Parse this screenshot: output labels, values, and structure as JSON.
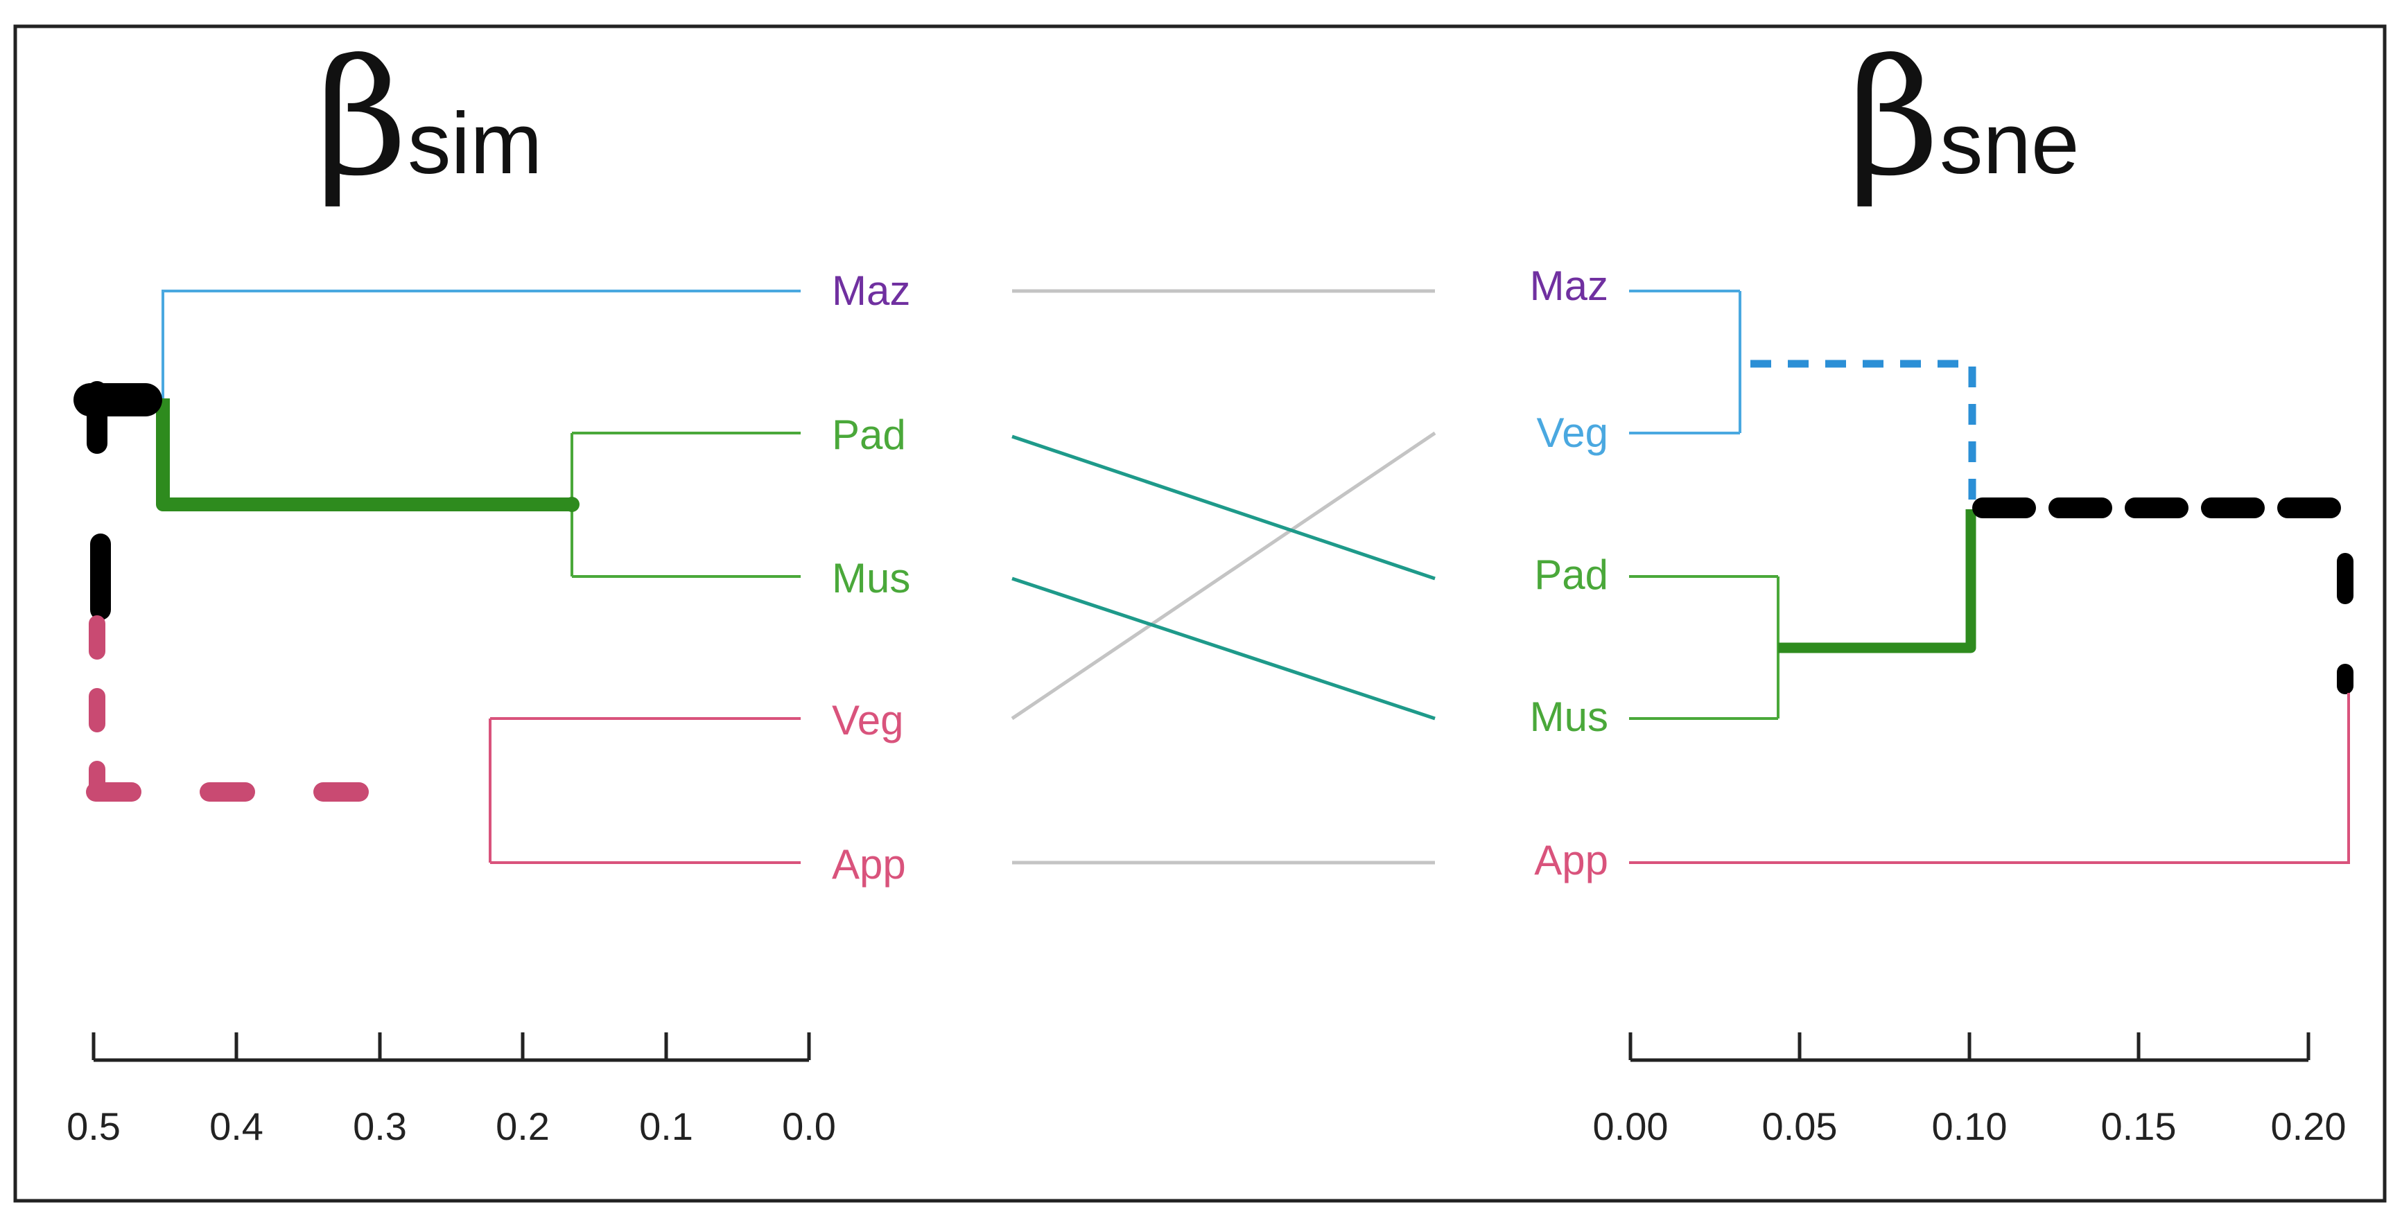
{
  "colors": {
    "frame": "#222222",
    "maz_label": "#7030a0",
    "blue": "#4aa8e0",
    "blue_dashed": "#2b8fd6",
    "green": "#4aa83a",
    "green_thick": "#2e8b1e",
    "pink": "#d9537c",
    "pink_dashed": "#c94a72",
    "black": "#000000",
    "grey_link": "#c4c4c4",
    "teal_link": "#1e9a8a",
    "axis": "#222222"
  },
  "diagram": {
    "type": "tanglegram",
    "left": {
      "title_symbol": "β",
      "title_subscript": "sim",
      "leaf_order": [
        "Maz",
        "Pad",
        "Mus",
        "Veg",
        "App"
      ],
      "leaf_colors": [
        "maz_label",
        "green",
        "green",
        "pink",
        "pink"
      ],
      "merges": [
        {
          "members": [
            "Pad",
            "Mus"
          ],
          "height": 0.17
        },
        {
          "members": [
            "Veg",
            "App"
          ],
          "height": 0.22
        },
        {
          "members": [
            "Maz",
            "Pad+Mus"
          ],
          "height": 0.45
        }
      ],
      "axis": {
        "min": 0.0,
        "max": 0.5,
        "reversed": true,
        "ticks": [
          "0.5",
          "0.4",
          "0.3",
          "0.2",
          "0.1",
          "0.0"
        ]
      }
    },
    "right": {
      "title_symbol": "β",
      "title_subscript": "sne",
      "leaf_order": [
        "Maz",
        "Veg",
        "Pad",
        "Mus",
        "App"
      ],
      "leaf_colors": [
        "maz_label",
        "blue",
        "green",
        "green",
        "pink"
      ],
      "merges": [
        {
          "members": [
            "Maz",
            "Veg"
          ],
          "height": 0.032
        },
        {
          "members": [
            "Pad",
            "Mus"
          ],
          "height": 0.044
        },
        {
          "members": [
            "Maz+Veg",
            "Pad+Mus"
          ],
          "height": 0.101
        },
        {
          "members": [
            "App",
            "rest"
          ],
          "height": 0.212
        }
      ],
      "axis": {
        "min": 0.0,
        "max": 0.2,
        "reversed": false,
        "ticks": [
          "0.00",
          "0.05",
          "0.10",
          "0.15",
          "0.20"
        ]
      }
    },
    "links": [
      {
        "from": "Maz",
        "to": "Maz",
        "changed": false
      },
      {
        "from": "Pad",
        "to": "Pad",
        "changed": true
      },
      {
        "from": "Mus",
        "to": "Mus",
        "changed": true
      },
      {
        "from": "Veg",
        "to": "Veg",
        "changed": false
      },
      {
        "from": "App",
        "to": "App",
        "changed": false
      }
    ]
  }
}
